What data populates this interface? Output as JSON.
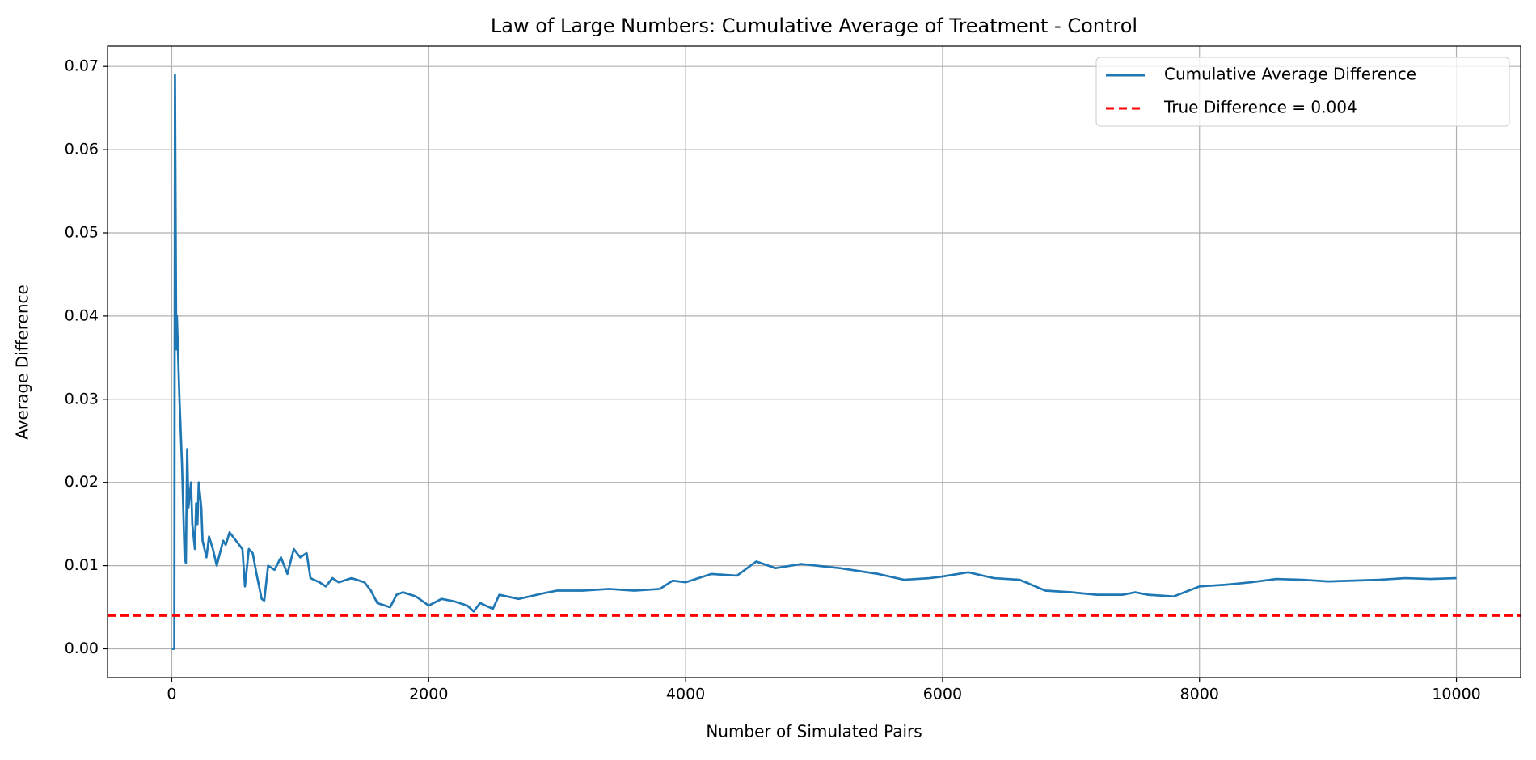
{
  "chart_data": {
    "type": "line",
    "title": "Law of Large Numbers: Cumulative Average of Treatment - Control",
    "x_label": "Number of Simulated Pairs",
    "y_label": "Average Difference",
    "x": [
      1,
      20,
      25,
      35,
      40,
      60,
      80,
      100,
      110,
      120,
      130,
      150,
      160,
      180,
      190,
      200,
      210,
      230,
      240,
      270,
      290,
      320,
      350,
      400,
      420,
      450,
      500,
      550,
      570,
      600,
      630,
      660,
      700,
      720,
      750,
      800,
      850,
      900,
      950,
      1000,
      1050,
      1080,
      1150,
      1200,
      1250,
      1300,
      1400,
      1500,
      1550,
      1600,
      1700,
      1750,
      1800,
      1900,
      2000,
      2100,
      2200,
      2300,
      2350,
      2400,
      2500,
      2550,
      2700,
      2900,
      3000,
      3200,
      3400,
      3600,
      3800,
      3900,
      4000,
      4200,
      4400,
      4550,
      4700,
      4900,
      5200,
      5500,
      5700,
      5900,
      6000,
      6200,
      6400,
      6600,
      6800,
      7000,
      7200,
      7400,
      7500,
      7600,
      7800,
      8000,
      8200,
      8400,
      8600,
      8800,
      9000,
      9200,
      9400,
      9600,
      9800,
      10000
    ],
    "series": [
      {
        "name": "Cumulative Average Difference",
        "color": "#1f77b4",
        "values": [
          0,
          0,
          0.069,
          0.036,
          0.04,
          0.03,
          0.022,
          0.011,
          0.0103,
          0.024,
          0.017,
          0.02,
          0.015,
          0.012,
          0.0175,
          0.015,
          0.02,
          0.017,
          0.013,
          0.011,
          0.0135,
          0.012,
          0.01,
          0.013,
          0.0125,
          0.014,
          0.013,
          0.012,
          0.0075,
          0.012,
          0.0115,
          0.009,
          0.006,
          0.0058,
          0.01,
          0.0095,
          0.011,
          0.009,
          0.012,
          0.011,
          0.0115,
          0.0085,
          0.008,
          0.0075,
          0.0085,
          0.008,
          0.0085,
          0.008,
          0.007,
          0.0055,
          0.005,
          0.0065,
          0.0068,
          0.0063,
          0.0052,
          0.006,
          0.0057,
          0.0052,
          0.0045,
          0.0055,
          0.0048,
          0.0065,
          0.006,
          0.0067,
          0.007,
          0.007,
          0.0072,
          0.007,
          0.0072,
          0.0082,
          0.008,
          0.009,
          0.0088,
          0.0105,
          0.0097,
          0.0102,
          0.0097,
          0.009,
          0.0083,
          0.0085,
          0.0087,
          0.0092,
          0.0085,
          0.0083,
          0.007,
          0.0068,
          0.0065,
          0.0065,
          0.0068,
          0.0065,
          0.0063,
          0.0075,
          0.0077,
          0.008,
          0.0084,
          0.0083,
          0.0081,
          0.0082,
          0.0083,
          0.0085,
          0.0084,
          0.0085
        ]
      },
      {
        "name": "True Difference = 0.004",
        "color": "#ff0000",
        "hline": 0.004,
        "dashed": true
      }
    ],
    "xlim": [
      -500,
      10500
    ],
    "xticks": [
      0,
      2000,
      4000,
      6000,
      8000,
      10000
    ],
    "ylim": [
      -0.00345,
      0.07245
    ],
    "yticks": [
      {
        "value": 0,
        "label": "0.00"
      },
      0.01,
      0.02,
      0.03,
      0.04,
      0.05,
      0.06,
      0.07
    ],
    "grid": true,
    "legend": "upper right"
  }
}
